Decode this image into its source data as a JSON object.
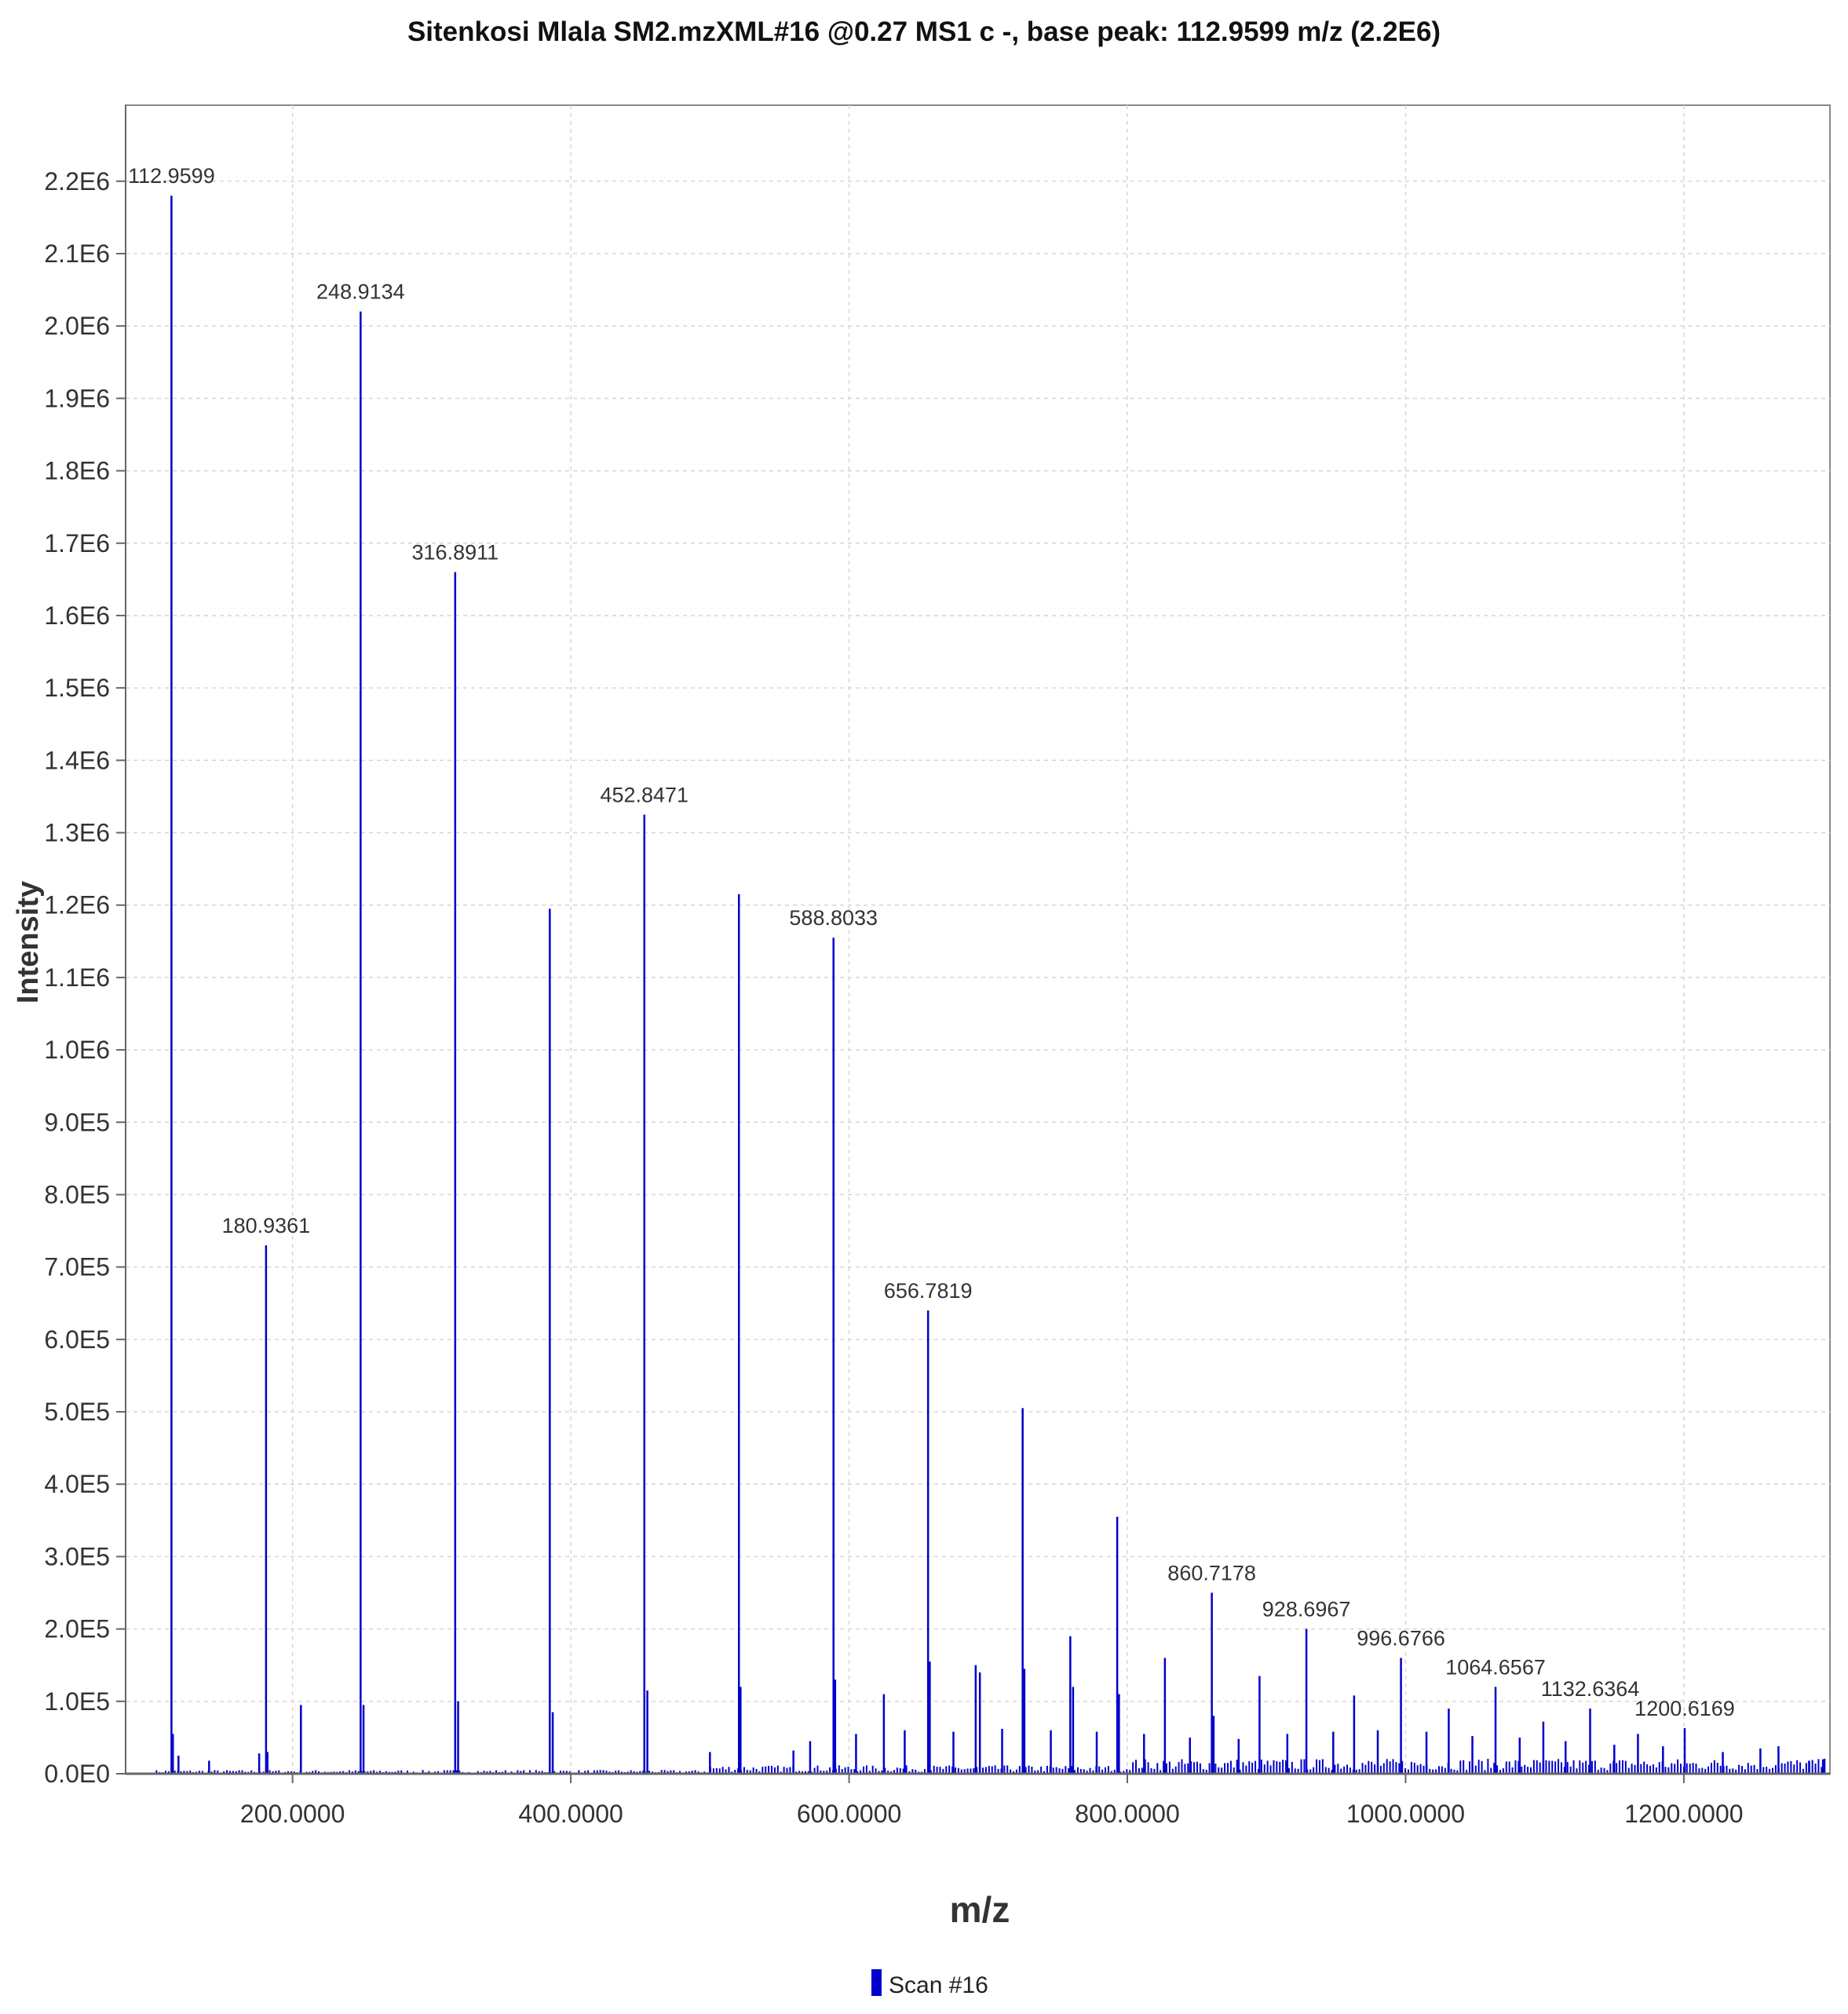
{
  "chart_data": {
    "type": "bar",
    "title": "Sitenkosi Mlala SM2.mzXML#16 @0.27 MS1 c -, base peak: 112.9599 m/z (2.2E6)",
    "xlabel": "m/z",
    "ylabel": "Intensity",
    "xlim": [
      80,
      1305
    ],
    "ylim": [
      0,
      2305000
    ],
    "grid": true,
    "legend_position": "bottom-center",
    "color": "#0000cc",
    "x_ticks": [
      {
        "value": 200,
        "label": "200.0000"
      },
      {
        "value": 400,
        "label": "400.0000"
      },
      {
        "value": 600,
        "label": "600.0000"
      },
      {
        "value": 800,
        "label": "800.0000"
      },
      {
        "value": 1000,
        "label": "1000.0000"
      },
      {
        "value": 1200,
        "label": "1200.0000"
      }
    ],
    "y_ticks": [
      {
        "value": 0,
        "label": "0.0E0"
      },
      {
        "value": 100000,
        "label": "1.0E5"
      },
      {
        "value": 200000,
        "label": "2.0E5"
      },
      {
        "value": 300000,
        "label": "3.0E5"
      },
      {
        "value": 400000,
        "label": "4.0E5"
      },
      {
        "value": 500000,
        "label": "5.0E5"
      },
      {
        "value": 600000,
        "label": "6.0E5"
      },
      {
        "value": 700000,
        "label": "7.0E5"
      },
      {
        "value": 800000,
        "label": "8.0E5"
      },
      {
        "value": 900000,
        "label": "9.0E5"
      },
      {
        "value": 1000000,
        "label": "1.0E6"
      },
      {
        "value": 1100000,
        "label": "1.1E6"
      },
      {
        "value": 1200000,
        "label": "1.2E6"
      },
      {
        "value": 1300000,
        "label": "1.3E6"
      },
      {
        "value": 1400000,
        "label": "1.4E6"
      },
      {
        "value": 1500000,
        "label": "1.5E6"
      },
      {
        "value": 1600000,
        "label": "1.6E6"
      },
      {
        "value": 1700000,
        "label": "1.7E6"
      },
      {
        "value": 1800000,
        "label": "1.8E6"
      },
      {
        "value": 1900000,
        "label": "1.9E6"
      },
      {
        "value": 2000000,
        "label": "2.0E6"
      },
      {
        "value": 2100000,
        "label": "2.1E6"
      },
      {
        "value": 2200000,
        "label": "2.2E6"
      }
    ],
    "series": [
      {
        "name": "Scan #16",
        "peaks": [
          {
            "x": 112.9599,
            "y": 2180000,
            "label": "112.9599"
          },
          {
            "x": 180.9361,
            "y": 730000,
            "label": "180.9361"
          },
          {
            "x": 248.9134,
            "y": 2020000,
            "label": "248.9134"
          },
          {
            "x": 316.8911,
            "y": 1660000,
            "label": "316.8911"
          },
          {
            "x": 384.87,
            "y": 1195000
          },
          {
            "x": 452.8471,
            "y": 1325000,
            "label": "452.8471"
          },
          {
            "x": 520.82,
            "y": 1215000
          },
          {
            "x": 588.8033,
            "y": 1155000,
            "label": "588.8033"
          },
          {
            "x": 656.7819,
            "y": 640000,
            "label": "656.7819"
          },
          {
            "x": 724.75,
            "y": 505000
          },
          {
            "x": 792.73,
            "y": 355000
          },
          {
            "x": 860.7178,
            "y": 250000,
            "label": "860.7178"
          },
          {
            "x": 928.6967,
            "y": 200000,
            "label": "928.6967"
          },
          {
            "x": 996.6766,
            "y": 160000,
            "label": "996.6766"
          },
          {
            "x": 1064.6567,
            "y": 120000,
            "label": "1064.6567"
          },
          {
            "x": 1132.6364,
            "y": 90000,
            "label": "1132.6364"
          },
          {
            "x": 1200.6169,
            "y": 63000,
            "label": "1200.6169"
          },
          {
            "x": 114.0,
            "y": 55000
          },
          {
            "x": 118.0,
            "y": 25000
          },
          {
            "x": 140.0,
            "y": 18000
          },
          {
            "x": 176.0,
            "y": 28000
          },
          {
            "x": 182.0,
            "y": 30000
          },
          {
            "x": 206.0,
            "y": 95000
          },
          {
            "x": 251.0,
            "y": 95000
          },
          {
            "x": 319.0,
            "y": 100000
          },
          {
            "x": 387.0,
            "y": 85000
          },
          {
            "x": 455.0,
            "y": 115000
          },
          {
            "x": 522.0,
            "y": 120000
          },
          {
            "x": 590.0,
            "y": 130000
          },
          {
            "x": 625.0,
            "y": 110000
          },
          {
            "x": 658.0,
            "y": 155000
          },
          {
            "x": 691.0,
            "y": 150000
          },
          {
            "x": 694.0,
            "y": 140000
          },
          {
            "x": 726.0,
            "y": 145000
          },
          {
            "x": 759.0,
            "y": 190000
          },
          {
            "x": 761.0,
            "y": 120000
          },
          {
            "x": 794.0,
            "y": 110000
          },
          {
            "x": 827.0,
            "y": 160000
          },
          {
            "x": 862.0,
            "y": 80000
          },
          {
            "x": 895.0,
            "y": 135000
          },
          {
            "x": 963.0,
            "y": 108000
          },
          {
            "x": 1031.0,
            "y": 90000
          },
          {
            "x": 1099.0,
            "y": 72000
          },
          {
            "x": 1167.0,
            "y": 55000
          },
          {
            "x": 500.0,
            "y": 30000
          },
          {
            "x": 560.0,
            "y": 32000
          },
          {
            "x": 572.0,
            "y": 45000
          },
          {
            "x": 605.0,
            "y": 55000
          },
          {
            "x": 640.0,
            "y": 60000
          },
          {
            "x": 675.0,
            "y": 58000
          },
          {
            "x": 710.0,
            "y": 62000
          },
          {
            "x": 745.0,
            "y": 60000
          },
          {
            "x": 778.0,
            "y": 58000
          },
          {
            "x": 812.0,
            "y": 55000
          },
          {
            "x": 845.0,
            "y": 50000
          },
          {
            "x": 880.0,
            "y": 48000
          },
          {
            "x": 915.0,
            "y": 55000
          },
          {
            "x": 948.0,
            "y": 58000
          },
          {
            "x": 980.0,
            "y": 60000
          },
          {
            "x": 1015.0,
            "y": 58000
          },
          {
            "x": 1048.0,
            "y": 52000
          },
          {
            "x": 1082.0,
            "y": 50000
          },
          {
            "x": 1115.0,
            "y": 45000
          },
          {
            "x": 1150.0,
            "y": 40000
          },
          {
            "x": 1185.0,
            "y": 38000
          },
          {
            "x": 1228.0,
            "y": 30000
          },
          {
            "x": 1255.0,
            "y": 35000
          },
          {
            "x": 1268.0,
            "y": 38000
          },
          {
            "x": 1290.0,
            "y": 18000
          },
          {
            "x": 1300.0,
            "y": 20000
          }
        ]
      }
    ]
  }
}
